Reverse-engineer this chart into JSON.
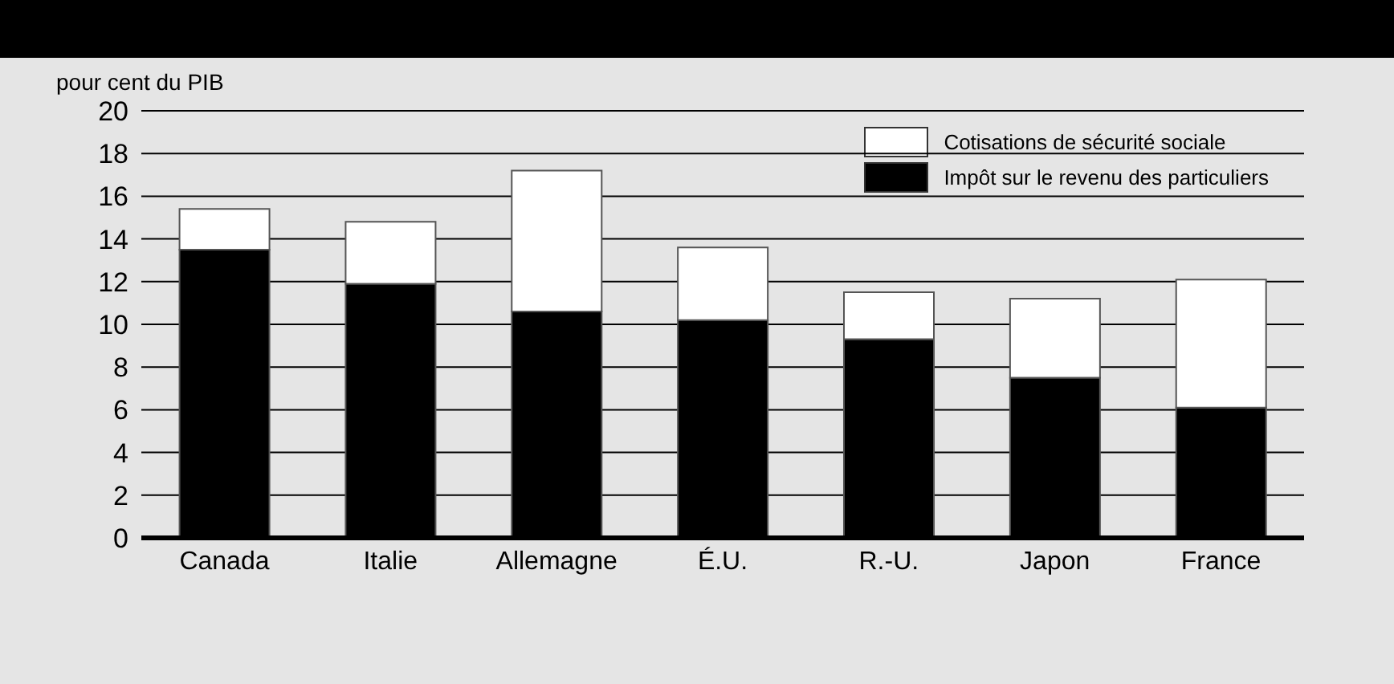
{
  "chart_data": {
    "type": "bar",
    "ylabel": "pour cent du PIB",
    "categories": [
      "Canada",
      "Italie",
      "Allemagne",
      "É.U.",
      "R.-U.",
      "Japon",
      "France"
    ],
    "stacked": true,
    "series": [
      {
        "name": "Impôt sur le revenu des particuliers",
        "color": "#000000",
        "values": [
          13.5,
          11.9,
          10.6,
          10.2,
          9.3,
          7.5,
          6.1
        ]
      },
      {
        "name": "Cotisations de sécurité sociale",
        "color": "#ffffff",
        "values": [
          1.9,
          2.9,
          6.6,
          3.4,
          2.2,
          3.7,
          6.0
        ]
      }
    ],
    "ylim": [
      0,
      20
    ],
    "yticks": [
      0,
      2,
      4,
      6,
      8,
      10,
      12,
      14,
      16,
      18,
      20
    ],
    "grid": "y",
    "legend": "top right"
  }
}
